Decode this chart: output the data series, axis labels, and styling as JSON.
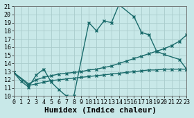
{
  "xlabel": "Humidex (Indice chaleur)",
  "xlim": [
    0,
    23
  ],
  "ylim": [
    10,
    21
  ],
  "xticks": [
    0,
    1,
    2,
    3,
    4,
    5,
    6,
    7,
    8,
    9,
    10,
    11,
    12,
    13,
    14,
    15,
    16,
    17,
    18,
    19,
    20,
    21,
    22,
    23
  ],
  "yticks": [
    10,
    11,
    12,
    13,
    14,
    15,
    16,
    17,
    18,
    19,
    20,
    21
  ],
  "background_color": "#c8e8e8",
  "grid_color": "#aacccc",
  "line_color": "#1a6b6b",
  "series1_x": [
    0,
    1,
    2,
    3,
    4,
    5,
    6,
    7,
    8,
    10,
    11,
    12,
    13,
    14,
    16,
    17,
    18,
    19,
    20,
    22,
    23
  ],
  "series1_y": [
    12.9,
    11.8,
    11.1,
    12.6,
    13.3,
    11.7,
    10.8,
    10.0,
    10.0,
    19.0,
    18.0,
    19.2,
    19.0,
    21.2,
    19.7,
    17.8,
    17.5,
    15.5,
    15.1,
    14.5,
    13.3
  ],
  "series2_x": [
    0,
    2,
    3,
    4,
    5,
    6,
    7,
    8,
    9,
    10,
    11,
    12,
    13,
    14,
    15,
    16,
    17,
    18,
    19,
    20,
    21,
    22,
    23
  ],
  "series2_y": [
    12.9,
    11.5,
    12.0,
    12.3,
    12.5,
    12.7,
    12.8,
    12.9,
    13.0,
    13.2,
    13.3,
    13.5,
    13.7,
    14.0,
    14.3,
    14.6,
    14.9,
    15.2,
    15.5,
    15.8,
    16.2,
    16.7,
    17.5
  ],
  "series3_x": [
    0,
    2,
    3,
    4,
    5,
    6,
    7,
    8,
    9,
    10,
    11,
    12,
    13,
    14,
    15,
    16,
    17,
    18,
    19,
    20,
    21,
    22,
    23
  ],
  "series3_y": [
    12.9,
    11.3,
    11.5,
    11.7,
    11.9,
    12.0,
    12.1,
    12.2,
    12.3,
    12.4,
    12.5,
    12.6,
    12.7,
    12.8,
    12.9,
    13.0,
    13.1,
    13.2,
    13.2,
    13.3,
    13.3,
    13.3,
    13.3
  ],
  "marker": "x",
  "markersize": 3,
  "linewidth": 1.0,
  "tick_fontsize": 6,
  "xlabel_fontsize": 8
}
